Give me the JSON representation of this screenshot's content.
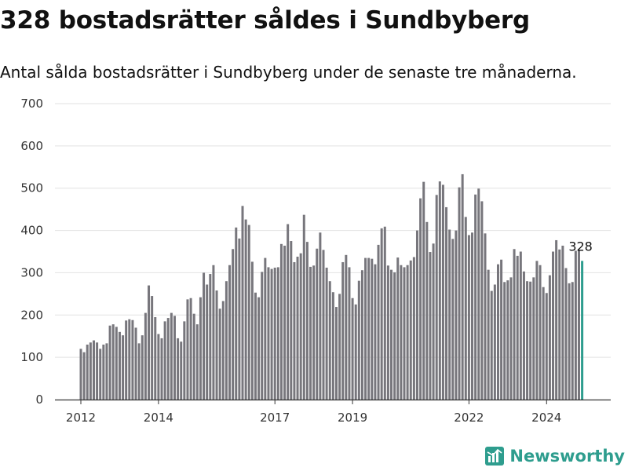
{
  "title": "328 bostadsrätter såldes i Sundbyberg",
  "subtitle": "Antal sålda bostadsrätter i Sundbyberg under de senaste tre månaderna.",
  "brand": {
    "name": "Newsworthy",
    "icon": "newsworthy-logo-icon"
  },
  "colors": {
    "bar": "#77767c",
    "highlight": "#2e9d8e",
    "grid": "#e2e2e2",
    "axis": "#333333",
    "brand": "#2e9d8e"
  },
  "chart_data": {
    "type": "bar",
    "title": "",
    "xlabel": "",
    "ylabel": "",
    "ylim": [
      0,
      700
    ],
    "yticks": [
      0,
      100,
      200,
      300,
      400,
      500,
      600,
      700
    ],
    "xticks": [
      "2012",
      "2014",
      "2017",
      "2019",
      "2022",
      "2024"
    ],
    "grid": true,
    "start": "2012-01",
    "frequency": "monthly",
    "highlight_label": "328",
    "values": [
      120,
      112,
      130,
      135,
      140,
      135,
      120,
      130,
      133,
      175,
      178,
      172,
      160,
      152,
      187,
      190,
      188,
      170,
      133,
      152,
      205,
      270,
      245,
      195,
      155,
      145,
      185,
      193,
      205,
      198,
      145,
      137,
      185,
      237,
      240,
      203,
      178,
      242,
      300,
      272,
      297,
      318,
      258,
      215,
      233,
      280,
      318,
      356,
      407,
      381,
      458,
      426,
      413,
      326,
      253,
      242,
      302,
      335,
      313,
      309,
      312,
      313,
      368,
      364,
      415,
      375,
      325,
      338,
      346,
      437,
      373,
      314,
      317,
      357,
      395,
      354,
      312,
      280,
      254,
      219,
      250,
      325,
      342,
      313,
      240,
      225,
      281,
      306,
      335,
      335,
      333,
      320,
      366,
      405,
      409,
      317,
      307,
      301,
      336,
      318,
      313,
      318,
      329,
      337,
      400,
      476,
      515,
      420,
      349,
      369,
      484,
      516,
      508,
      455,
      402,
      380,
      400,
      502,
      533,
      432,
      389,
      395,
      485,
      499,
      469,
      393,
      307,
      257,
      272,
      320,
      331,
      278,
      282,
      289,
      356,
      340,
      350,
      303,
      280,
      279,
      289,
      328,
      318,
      266,
      252,
      294,
      350,
      377,
      355,
      364,
      311,
      275,
      278,
      352,
      352,
      328
    ]
  }
}
